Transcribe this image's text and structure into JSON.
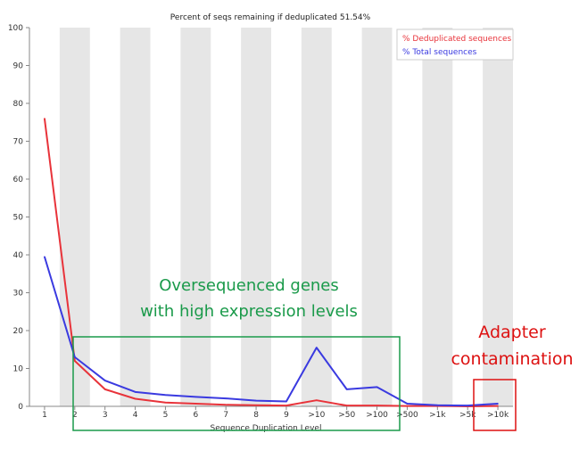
{
  "chart_data": {
    "type": "line",
    "title": "Percent of seqs remaining if deduplicated 51.54%",
    "xlabel": "Sequence Duplication Level",
    "ylabel": "",
    "ylim": [
      0,
      100
    ],
    "yticks": [
      0,
      10,
      20,
      30,
      40,
      50,
      60,
      70,
      80,
      90,
      100
    ],
    "categories": [
      "1",
      "2",
      "3",
      "4",
      "5",
      "6",
      "7",
      "8",
      "9",
      ">10",
      ">50",
      ">100",
      ">500",
      ">1k",
      ">5k",
      ">10k"
    ],
    "grid": "alternating vertical bands",
    "legend_position": "top-right",
    "series": [
      {
        "name": "% Deduplicated sequences",
        "color": "#e8333a",
        "values": [
          76,
          12,
          4.5,
          2,
          1,
          0.7,
          0.4,
          0.3,
          0.2,
          1.6,
          0.2,
          0.2,
          0.1,
          0.1,
          0,
          0.1
        ]
      },
      {
        "name": "% Total sequences",
        "color": "#3a3ae0",
        "values": [
          39.5,
          13,
          6.8,
          3.8,
          3,
          2.5,
          2.1,
          1.5,
          1.3,
          15.5,
          4.5,
          5.1,
          0.7,
          0.3,
          0.2,
          0.7
        ]
      }
    ]
  },
  "annotations": [
    {
      "lines": [
        "Oversequenced genes",
        "with high expression levels"
      ],
      "color": "#1a9a4a"
    },
    {
      "lines": [
        "Adapter",
        "contamination"
      ],
      "color": "#dd1111"
    }
  ]
}
